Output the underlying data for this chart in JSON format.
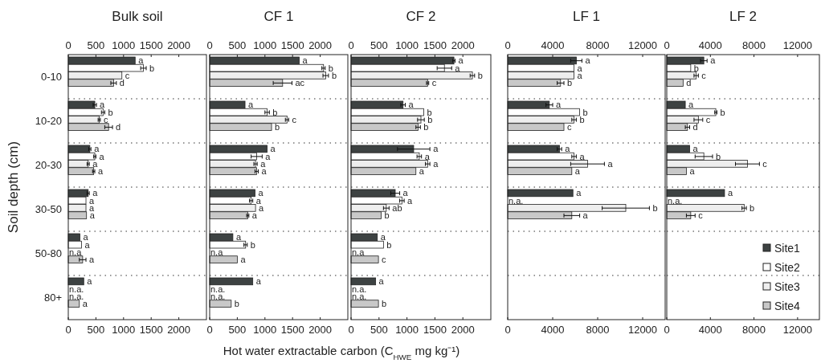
{
  "chart_data": [
    {
      "type": "bar",
      "orientation": "horizontal",
      "title": "Bulk soil",
      "ylabel": "Soil depth (cm)",
      "categories": [
        "0-10",
        "10-20",
        "20-30",
        "30-50",
        "50-80",
        "80+"
      ],
      "xlim": [
        0,
        2500
      ],
      "xticks": [
        0,
        500,
        1000,
        1500,
        2000
      ],
      "x2lim": [
        0,
        2500
      ],
      "x2ticks": [
        0,
        500,
        1000,
        1500,
        2000
      ],
      "grid": "y",
      "series": [
        {
          "color": "#3d4242",
          "values": [
            1210,
            480,
            390,
            360,
            210,
            280
          ],
          "errors": [
            null,
            30,
            20,
            20,
            null,
            null
          ],
          "value_labels": [
            "a",
            "a",
            "a",
            "a",
            "a",
            "a"
          ]
        },
        {
          "color": "#ffffff",
          "values": [
            1360,
            630,
            480,
            320,
            240,
            null
          ],
          "errors": [
            50,
            30,
            20,
            null,
            null,
            null
          ],
          "value_labels": [
            "b",
            "b",
            "a",
            "a",
            "a",
            "n.a."
          ]
        },
        {
          "color": "#eeeeee",
          "values": [
            970,
            560,
            360,
            320,
            null,
            null
          ],
          "errors": [
            null,
            20,
            20,
            null,
            null,
            null
          ],
          "value_labels": [
            "c",
            "c",
            "a",
            "a",
            "n.a",
            "n.a."
          ]
        },
        {
          "color": "#c8c8c8",
          "values": [
            820,
            730,
            460,
            330,
            260,
            200
          ],
          "errors": [
            50,
            70,
            20,
            null,
            60,
            null
          ],
          "value_labels": [
            "d",
            "d",
            "a",
            "a",
            "a",
            "a"
          ]
        }
      ]
    },
    {
      "type": "bar",
      "orientation": "horizontal",
      "title": "CF 1",
      "categories": [
        null,
        null,
        null,
        null,
        null,
        null
      ],
      "xlim": [
        0,
        2500
      ],
      "xticks": [
        0,
        500,
        1000,
        1500,
        2000
      ],
      "x2lim": [
        0,
        2500
      ],
      "x2ticks": [
        0,
        500,
        1000,
        1500,
        2000
      ],
      "grid": "y",
      "series": [
        {
          "color": "#3d4242",
          "values": [
            1620,
            640,
            1040,
            820,
            420,
            780
          ],
          "value_labels": [
            "a",
            "a",
            "a",
            "a",
            "a",
            "a"
          ]
        },
        {
          "color": "#ffffff",
          "values": [
            2060,
            1040,
            850,
            750,
            650,
            null
          ],
          "errors": [
            30,
            40,
            100,
            30,
            30,
            null
          ],
          "value_labels": [
            "b",
            "b",
            "a",
            "a",
            "b",
            "n.a."
          ]
        },
        {
          "color": "#eeeeee",
          "values": [
            2100,
            1400,
            830,
            830,
            null,
            null
          ],
          "errors": [
            50,
            30,
            30,
            null,
            null,
            null
          ],
          "value_labels": [
            "b",
            "c",
            "a",
            "a",
            "n.a",
            "n.a."
          ]
        },
        {
          "color": "#c8c8c8",
          "values": [
            1320,
            1120,
            850,
            690,
            500,
            390
          ],
          "errors": [
            170,
            null,
            30,
            20,
            null,
            null
          ],
          "value_labels": [
            "ac",
            "b",
            "a",
            "a",
            "a",
            "b"
          ]
        }
      ]
    },
    {
      "type": "bar",
      "orientation": "horizontal",
      "title": "CF 2",
      "xlabel": "Hot water extractable carbon (C$_{HWE}$ mg kg⁻¹)",
      "categories": [
        null,
        null,
        null,
        null,
        null,
        null
      ],
      "xlim": [
        0,
        2500
      ],
      "xticks": [
        0,
        500,
        1000,
        1500,
        2000
      ],
      "x2lim": [
        0,
        2500
      ],
      "x2ticks": [
        0,
        500,
        1000,
        1500,
        2000
      ],
      "grid": "y",
      "series": [
        {
          "color": "#3d4242",
          "values": [
            1840,
            930,
            1120,
            790,
            470,
            440
          ],
          "errors": [
            20,
            40,
            290,
            80,
            null,
            null
          ],
          "value_labels": [
            "a",
            "a",
            "a",
            "a",
            "a",
            "a"
          ]
        },
        {
          "color": "#ffffff",
          "values": [
            1670,
            1300,
            1220,
            910,
            580,
            null
          ],
          "errors": [
            130,
            null,
            40,
            40,
            null,
            null
          ],
          "value_labels": [
            "a",
            "b",
            "a",
            "a",
            "b",
            "n.a."
          ]
        },
        {
          "color": "#eeeeee",
          "values": [
            2170,
            1250,
            1370,
            630,
            null,
            null
          ],
          "errors": [
            40,
            60,
            40,
            50,
            null,
            null
          ],
          "value_labels": [
            "b",
            "b",
            "a",
            "ab",
            "n.a",
            "n.a."
          ]
        },
        {
          "color": "#c8c8c8",
          "values": [
            1370,
            1200,
            1160,
            540,
            490,
            490
          ],
          "errors": [
            20,
            40,
            null,
            null,
            null,
            null
          ],
          "value_labels": [
            "c",
            "b",
            "a",
            "b",
            "c",
            "b"
          ]
        }
      ]
    },
    {
      "type": "bar",
      "orientation": "horizontal",
      "title": "LF 1",
      "categories": [
        null,
        null,
        null,
        null,
        null,
        null
      ],
      "xlim": [
        0,
        14000
      ],
      "xticks": [
        0,
        4000,
        8000,
        12000
      ],
      "x2lim": [
        0,
        14000
      ],
      "x2ticks": [
        0,
        4000,
        8000,
        12000
      ],
      "grid": "y",
      "series": [
        {
          "color": "#3d4242",
          "values": [
            6100,
            3700,
            4600,
            5800,
            null,
            null
          ],
          "errors": [
            500,
            300,
            200,
            null,
            null,
            null
          ],
          "value_labels": [
            "a",
            "a",
            "a",
            "a",
            null,
            null
          ]
        },
        {
          "color": "#ffffff",
          "values": [
            5900,
            6400,
            5900,
            null,
            null,
            null
          ],
          "errors": [
            null,
            null,
            200,
            null,
            null,
            null
          ],
          "value_labels": [
            "a",
            "b",
            "a",
            "n.a.",
            null,
            null
          ]
        },
        {
          "color": "#eeeeee",
          "values": [
            5900,
            5900,
            7100,
            10500,
            null,
            null
          ],
          "errors": [
            null,
            200,
            1500,
            2100,
            null,
            null
          ],
          "value_labels": [
            "a",
            "b",
            "a",
            "b",
            null,
            null
          ]
        },
        {
          "color": "#c8c8c8",
          "values": [
            4700,
            5000,
            5700,
            5700,
            null,
            null
          ],
          "errors": [
            300,
            null,
            null,
            700,
            null,
            null
          ],
          "value_labels": [
            "b",
            "c",
            "a",
            "a",
            null,
            null
          ]
        }
      ]
    },
    {
      "type": "bar",
      "orientation": "horizontal",
      "title": "LF 2",
      "categories": [
        null,
        null,
        null,
        null,
        null,
        null
      ],
      "xlim": [
        0,
        14000
      ],
      "xticks": [
        0,
        4000,
        8000,
        12000
      ],
      "x2lim": [
        0,
        14000
      ],
      "x2ticks": [
        0,
        4000,
        8000,
        12000
      ],
      "grid": "y",
      "legend": "bottom right",
      "series": [
        {
          "name": "Site1",
          "color": "#3d4242",
          "values": [
            3400,
            1700,
            2100,
            5300,
            null,
            null
          ],
          "errors": [
            300,
            null,
            null,
            null,
            null,
            null
          ],
          "value_labels": [
            "a",
            "a",
            "a",
            "a",
            null,
            null
          ]
        },
        {
          "name": "Site2",
          "color": "#ffffff",
          "values": [
            2200,
            4500,
            3400,
            null,
            null,
            null
          ],
          "errors": [
            null,
            100,
            800,
            null,
            null,
            null
          ],
          "value_labels": [
            "b",
            "b",
            "b",
            "n.a.",
            null,
            null
          ]
        },
        {
          "name": "Site3",
          "color": "#eeeeee",
          "values": [
            2700,
            2900,
            7400,
            7100,
            null,
            null
          ],
          "errors": [
            200,
            400,
            1100,
            200,
            null,
            null
          ],
          "value_labels": [
            "c",
            "c",
            "c",
            "b",
            null,
            null
          ]
        },
        {
          "name": "Site4",
          "color": "#c8c8c8",
          "values": [
            1500,
            1900,
            1800,
            2200,
            null,
            null
          ],
          "errors": [
            null,
            200,
            null,
            400,
            null,
            null
          ],
          "value_labels": [
            "d",
            "d",
            "a",
            "c",
            null,
            null
          ]
        }
      ]
    }
  ]
}
